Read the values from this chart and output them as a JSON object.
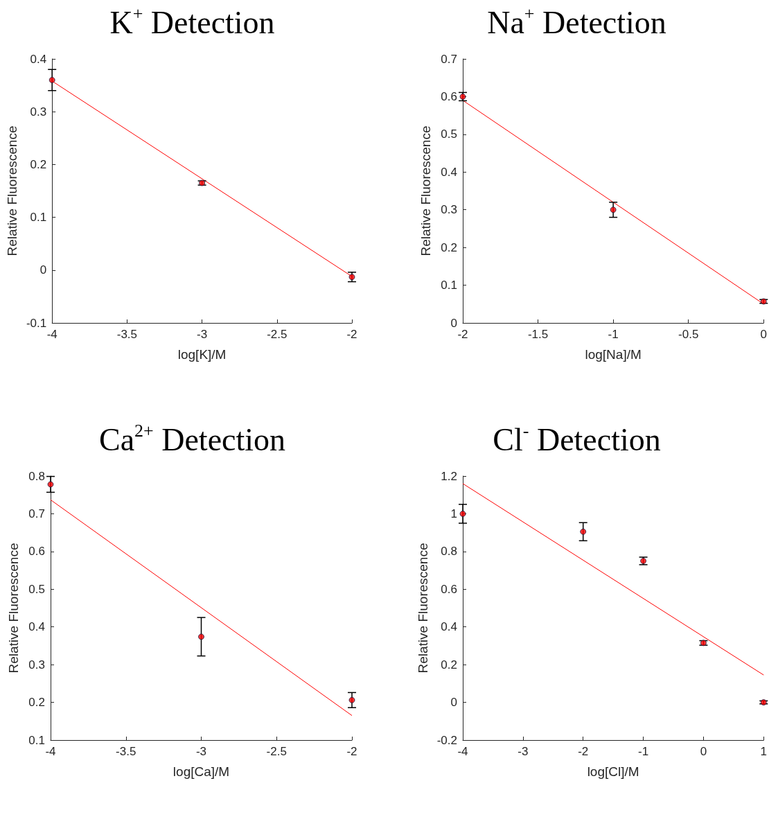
{
  "chart_data": [
    {
      "type": "scatter",
      "title": "K$^{+}$ Detection",
      "xlabel": "log[K]/M",
      "ylabel": "Relative Fluorescence",
      "xlim": [
        -4,
        -2
      ],
      "xticks": [
        -4,
        -3.5,
        -3,
        -2.5,
        -2
      ],
      "ylim": [
        -0.1,
        0.4
      ],
      "yticks": [
        -0.1,
        0,
        0.1,
        0.2,
        0.3,
        0.4
      ],
      "series": [
        {
          "color": "#ff0000",
          "marker": "circle",
          "x": [
            -4,
            -3,
            -2
          ],
          "values": [
            0.36,
            0.165,
            -0.013
          ],
          "errors": [
            0.02,
            0.004,
            0.009
          ]
        },
        {
          "type": "line",
          "color": "#ff0000",
          "marker": "none",
          "x": [
            -4,
            -2
          ],
          "values": [
            0.358,
            -0.012
          ]
        }
      ]
    },
    {
      "type": "scatter",
      "title": "Na$^{+}$ Detection",
      "xlabel": "log[Na]/M",
      "ylabel": "Relative Fluorescence",
      "xlim": [
        -2,
        0
      ],
      "xticks": [
        -2,
        -1.5,
        -1,
        -0.5,
        0
      ],
      "ylim": [
        0,
        0.7
      ],
      "yticks": [
        0,
        0.1,
        0.2,
        0.3,
        0.4,
        0.5,
        0.6,
        0.7
      ],
      "series": [
        {
          "color": "#ff0000",
          "marker": "circle",
          "x": [
            -2,
            -1,
            0
          ],
          "values": [
            0.6,
            0.3,
            0.057
          ],
          "errors": [
            0.011,
            0.02,
            0.005
          ]
        },
        {
          "type": "line",
          "color": "#ff0000",
          "marker": "none",
          "x": [
            -2,
            0
          ],
          "values": [
            0.59,
            0.05
          ]
        }
      ]
    },
    {
      "type": "scatter",
      "title": "Ca$^{2+}$ Detection",
      "xlabel": "log[Ca]/M",
      "ylabel": "Relative Fluorescence",
      "xlim": [
        -4,
        -2
      ],
      "xticks": [
        -4,
        -3.5,
        -3,
        -2.5,
        -2
      ],
      "ylim": [
        0.1,
        0.8
      ],
      "yticks": [
        0.1,
        0.2,
        0.3,
        0.4,
        0.5,
        0.6,
        0.7,
        0.8
      ],
      "series": [
        {
          "color": "#ff0000",
          "marker": "circle",
          "x": [
            -4,
            -3,
            -2
          ],
          "values": [
            0.778,
            0.374,
            0.206
          ],
          "errors": [
            0.021,
            0.051,
            0.02
          ]
        },
        {
          "type": "line",
          "color": "#ff0000",
          "marker": "none",
          "x": [
            -4,
            -2
          ],
          "values": [
            0.737,
            0.165
          ]
        }
      ]
    },
    {
      "type": "scatter",
      "title": "Cl$^{-}$ Detection",
      "xlabel": "log[Cl]/M",
      "ylabel": "Relative Fluorescence",
      "xlim": [
        -4,
        1
      ],
      "xticks": [
        -4,
        -3,
        -2,
        -1,
        0,
        1
      ],
      "ylim": [
        -0.2,
        1.2
      ],
      "yticks": [
        -0.2,
        0,
        0.2,
        0.4,
        0.6,
        0.8,
        1,
        1.2
      ],
      "series": [
        {
          "color": "#ff0000",
          "marker": "circle",
          "x": [
            -4,
            -2,
            -1,
            0,
            1
          ],
          "values": [
            1.0,
            0.905,
            0.75,
            0.315,
            0.0
          ],
          "errors": [
            0.05,
            0.048,
            0.02,
            0.012,
            0.008
          ]
        },
        {
          "type": "line",
          "color": "#ff0000",
          "marker": "none",
          "x": [
            -4,
            1
          ],
          "values": [
            1.16,
            0.145
          ]
        }
      ]
    }
  ]
}
